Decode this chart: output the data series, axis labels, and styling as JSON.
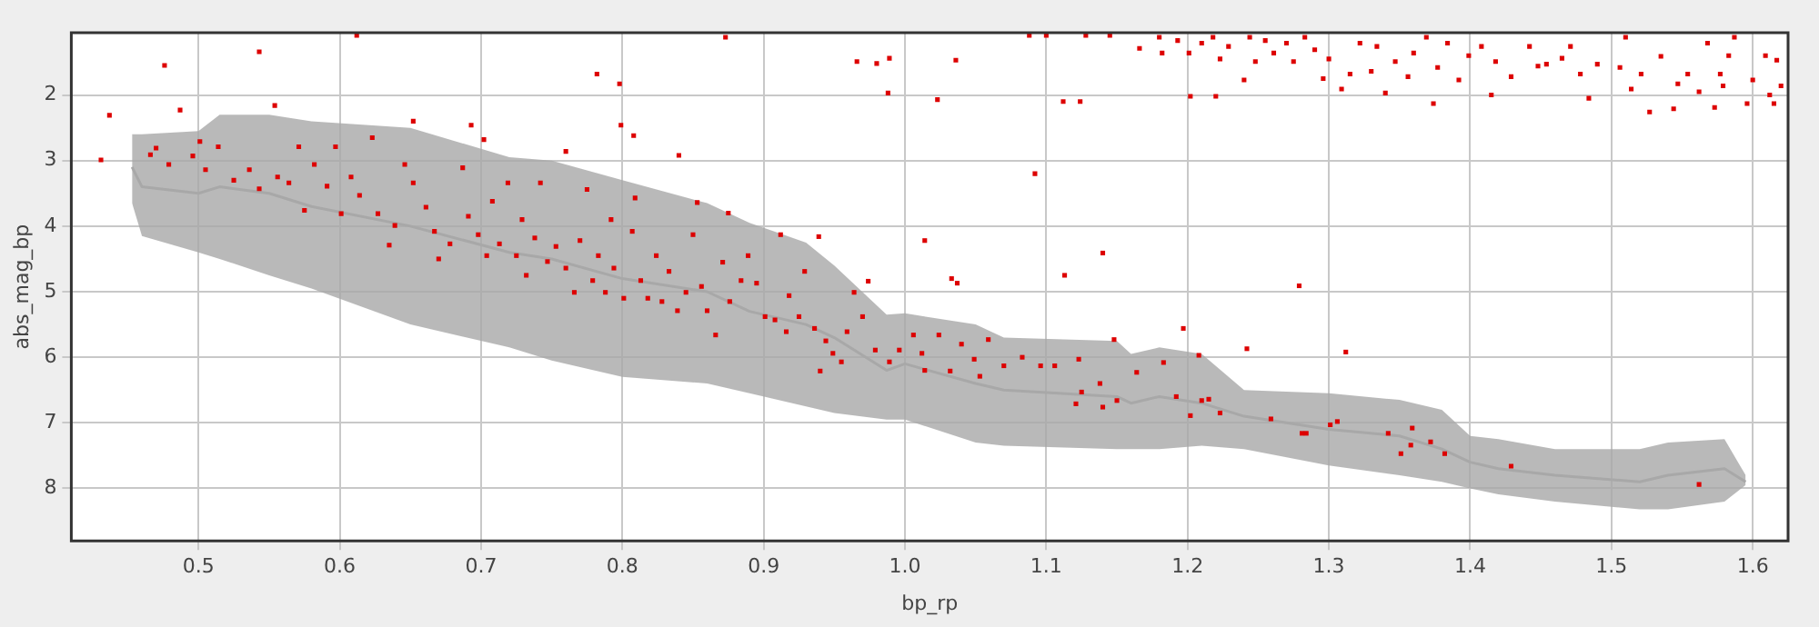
{
  "chart_data": {
    "type": "scatter",
    "xlabel": "bp_rp",
    "ylabel": "abs_mag_bp",
    "xlim": [
      0.41,
      1.625
    ],
    "ylim": [
      8.8,
      1.05
    ],
    "xticks": [
      0.5,
      0.6,
      0.7,
      0.8,
      0.9,
      {
        "value": 1,
        "label": "1.0"
      },
      1.1,
      1.2,
      1.3,
      1.4,
      1.5,
      1.6
    ],
    "yticks": [
      2,
      3,
      4,
      5,
      6,
      7,
      8
    ],
    "grid": true,
    "marker": "square",
    "series": [
      {
        "type": "line",
        "marker": "none",
        "color": "#a8a8a8",
        "x": [
          0.453,
          0.46,
          0.5,
          0.515,
          0.55,
          0.58,
          0.65,
          0.72,
          0.75,
          0.8,
          0.86,
          0.89,
          0.93,
          0.95,
          0.987,
          1.0,
          1.05,
          1.07,
          1.15,
          1.16,
          1.18,
          1.21,
          1.24,
          1.3,
          1.35,
          1.38,
          1.4,
          1.42,
          1.46,
          1.52,
          1.54,
          1.58,
          1.595
        ],
        "values": [
          3.1,
          3.4,
          3.5,
          3.4,
          3.5,
          3.7,
          4.0,
          4.4,
          4.5,
          4.8,
          5.0,
          5.3,
          5.5,
          5.7,
          6.2,
          6.1,
          6.4,
          6.5,
          6.6,
          6.7,
          6.6,
          6.7,
          6.9,
          7.1,
          7.2,
          7.4,
          7.6,
          7.7,
          7.8,
          7.9,
          7.8,
          7.7,
          7.9
        ],
        "upper": [
          2.6,
          2.6,
          2.55,
          2.3,
          2.3,
          2.4,
          2.5,
          2.95,
          3.0,
          3.3,
          3.65,
          3.95,
          4.25,
          4.6,
          5.35,
          5.33,
          5.5,
          5.7,
          5.75,
          5.95,
          5.85,
          5.95,
          6.5,
          6.55,
          6.65,
          6.8,
          7.2,
          7.25,
          7.4,
          7.4,
          7.3,
          7.25,
          7.8
        ],
        "lower": [
          3.65,
          4.15,
          4.4,
          4.5,
          4.75,
          4.95,
          5.5,
          5.85,
          6.05,
          6.3,
          6.4,
          6.55,
          6.75,
          6.85,
          6.95,
          6.95,
          7.3,
          7.35,
          7.4,
          7.4,
          7.4,
          7.35,
          7.4,
          7.65,
          7.8,
          7.9,
          8.0,
          8.09,
          8.2,
          8.32,
          8.32,
          8.2,
          7.95
        ]
      },
      {
        "color": "#dd0000",
        "x": [
          0.431,
          0.437,
          0.476,
          0.487,
          0.543,
          0.554,
          0.612,
          0.652,
          0.693,
          0.702,
          0.76,
          0.782,
          0.798,
          0.799,
          0.808,
          0.84,
          0.873,
          0.966,
          0.98,
          0.989,
          0.988,
          0.853,
          0.875,
          0.939,
          0.466,
          0.47,
          0.479,
          0.496,
          0.501,
          0.505,
          0.514,
          0.525,
          0.536,
          0.543,
          0.556,
          0.564,
          0.571,
          0.575,
          0.582,
          0.591,
          0.597,
          0.601,
          0.608,
          0.614,
          0.623,
          0.627,
          0.635,
          0.639,
          0.646,
          0.652,
          0.661,
          0.667,
          0.67,
          0.678,
          0.687,
          0.691,
          0.698,
          0.704,
          0.708,
          0.713,
          0.719,
          0.725,
          0.729,
          0.732,
          0.738,
          0.742,
          0.747,
          0.753,
          0.76,
          0.766,
          0.77,
          0.775,
          0.779,
          0.783,
          0.788,
          0.792,
          0.794,
          0.801,
          0.807,
          0.809,
          0.813,
          0.818,
          0.824,
          0.828,
          0.833,
          0.839,
          0.845,
          0.85,
          0.856,
          0.86,
          0.866,
          0.871,
          0.876,
          0.884,
          0.889,
          0.895,
          0.901,
          0.908,
          0.912,
          0.916,
          0.918,
          0.925,
          0.929,
          0.936,
          0.94,
          0.944,
          0.949,
          0.955,
          0.959,
          0.964,
          0.97,
          0.974,
          0.979,
          0.989,
          0.996,
          1.006,
          1.012,
          1.014,
          1.024,
          1.032,
          1.04,
          1.049,
          1.053,
          1.059,
          1.07,
          1.083,
          1.096,
          1.106,
          1.121,
          1.123,
          1.125,
          1.138,
          1.14,
          1.148,
          1.15,
          1.164,
          1.183,
          1.192,
          1.197,
          1.202,
          1.208,
          1.21,
          1.215,
          1.223,
          1.242,
          1.259,
          1.281,
          1.284,
          1.301,
          1.306,
          1.312,
          1.342,
          1.351,
          1.358,
          1.359,
          1.372,
          1.382,
          1.429,
          1.562,
          1.014,
          1.033,
          1.037,
          1.092,
          1.14,
          1.113,
          1.279,
          1.036,
          1.023,
          1.112,
          1.124,
          1.202,
          1.22,
          1.088,
          1.1,
          1.128,
          1.145,
          1.166,
          1.18,
          1.182,
          1.193,
          1.201,
          1.21,
          1.218,
          1.223,
          1.229,
          1.24,
          1.244,
          1.248,
          1.255,
          1.261,
          1.27,
          1.275,
          1.283,
          1.29,
          1.296,
          1.3,
          1.309,
          1.315,
          1.322,
          1.33,
          1.334,
          1.34,
          1.347,
          1.356,
          1.36,
          1.369,
          1.374,
          1.377,
          1.384,
          1.392,
          1.399,
          1.408,
          1.415,
          1.418,
          1.429,
          1.442,
          1.448,
          1.454,
          1.465,
          1.471,
          1.478,
          1.484,
          1.49,
          1.506,
          1.51,
          1.514,
          1.521,
          1.527,
          1.535,
          1.544,
          1.547,
          1.554,
          1.562,
          1.568,
          1.573,
          1.577,
          1.579,
          1.583,
          1.587,
          1.596,
          1.6,
          1.609,
          1.612,
          1.615,
          1.617,
          1.62
        ],
        "values": [
          2.99,
          2.31,
          1.55,
          2.23,
          1.34,
          2.16,
          1.09,
          2.4,
          2.46,
          2.68,
          2.86,
          1.68,
          1.83,
          2.46,
          2.62,
          2.92,
          1.12,
          1.49,
          1.52,
          1.44,
          1.97,
          3.64,
          3.8,
          4.16,
          2.91,
          2.81,
          3.06,
          2.93,
          2.71,
          3.14,
          2.79,
          3.3,
          3.14,
          3.43,
          3.25,
          3.34,
          2.79,
          3.76,
          3.06,
          3.39,
          2.79,
          3.81,
          3.25,
          3.53,
          2.65,
          3.81,
          4.29,
          3.99,
          3.06,
          3.34,
          3.71,
          4.08,
          4.5,
          4.27,
          3.11,
          3.85,
          4.13,
          4.45,
          3.62,
          4.27,
          3.34,
          4.45,
          3.9,
          4.75,
          4.18,
          3.34,
          4.54,
          4.31,
          4.64,
          5.01,
          4.22,
          3.44,
          4.83,
          4.45,
          5.01,
          3.9,
          4.64,
          5.1,
          4.08,
          3.57,
          4.83,
          5.1,
          4.45,
          5.15,
          4.69,
          5.29,
          5.01,
          4.13,
          4.92,
          5.29,
          5.66,
          4.55,
          5.15,
          4.83,
          4.45,
          4.87,
          5.38,
          5.43,
          4.13,
          5.61,
          5.06,
          5.38,
          4.69,
          5.56,
          6.21,
          5.75,
          5.94,
          6.07,
          5.61,
          5.01,
          5.38,
          4.84,
          5.89,
          6.07,
          5.89,
          5.66,
          5.94,
          6.2,
          5.66,
          6.21,
          5.8,
          6.03,
          6.29,
          5.73,
          6.13,
          6.0,
          6.13,
          6.13,
          6.71,
          6.03,
          6.53,
          6.4,
          6.76,
          5.73,
          6.66,
          6.23,
          6.08,
          6.6,
          5.56,
          6.89,
          5.97,
          6.66,
          6.64,
          6.85,
          5.87,
          6.94,
          7.16,
          7.16,
          7.03,
          6.98,
          5.92,
          7.16,
          7.47,
          7.34,
          7.08,
          7.29,
          7.47,
          7.66,
          7.94,
          4.22,
          4.8,
          4.87,
          3.2,
          4.41,
          4.75,
          4.91,
          1.47,
          2.07,
          2.1,
          2.1,
          2.02,
          2.02,
          1.09,
          1.09,
          1.09,
          1.09,
          1.29,
          1.12,
          1.36,
          1.17,
          1.36,
          1.21,
          1.12,
          1.45,
          1.26,
          1.77,
          1.12,
          1.49,
          1.17,
          1.36,
          1.21,
          1.49,
          1.12,
          1.31,
          1.75,
          1.45,
          1.91,
          1.68,
          1.21,
          1.64,
          1.26,
          1.97,
          1.49,
          1.72,
          1.36,
          1.12,
          2.13,
          1.58,
          1.21,
          1.77,
          1.4,
          1.26,
          2.0,
          1.49,
          1.72,
          1.26,
          1.56,
          1.53,
          1.44,
          1.26,
          1.68,
          2.05,
          1.53,
          1.58,
          1.12,
          1.91,
          1.68,
          2.26,
          1.41,
          2.21,
          1.83,
          1.68,
          1.95,
          1.21,
          2.19,
          1.68,
          1.86,
          1.4,
          1.12,
          2.13,
          1.77,
          1.4,
          2.0,
          2.13,
          1.47,
          1.86
        ]
      }
    ]
  }
}
